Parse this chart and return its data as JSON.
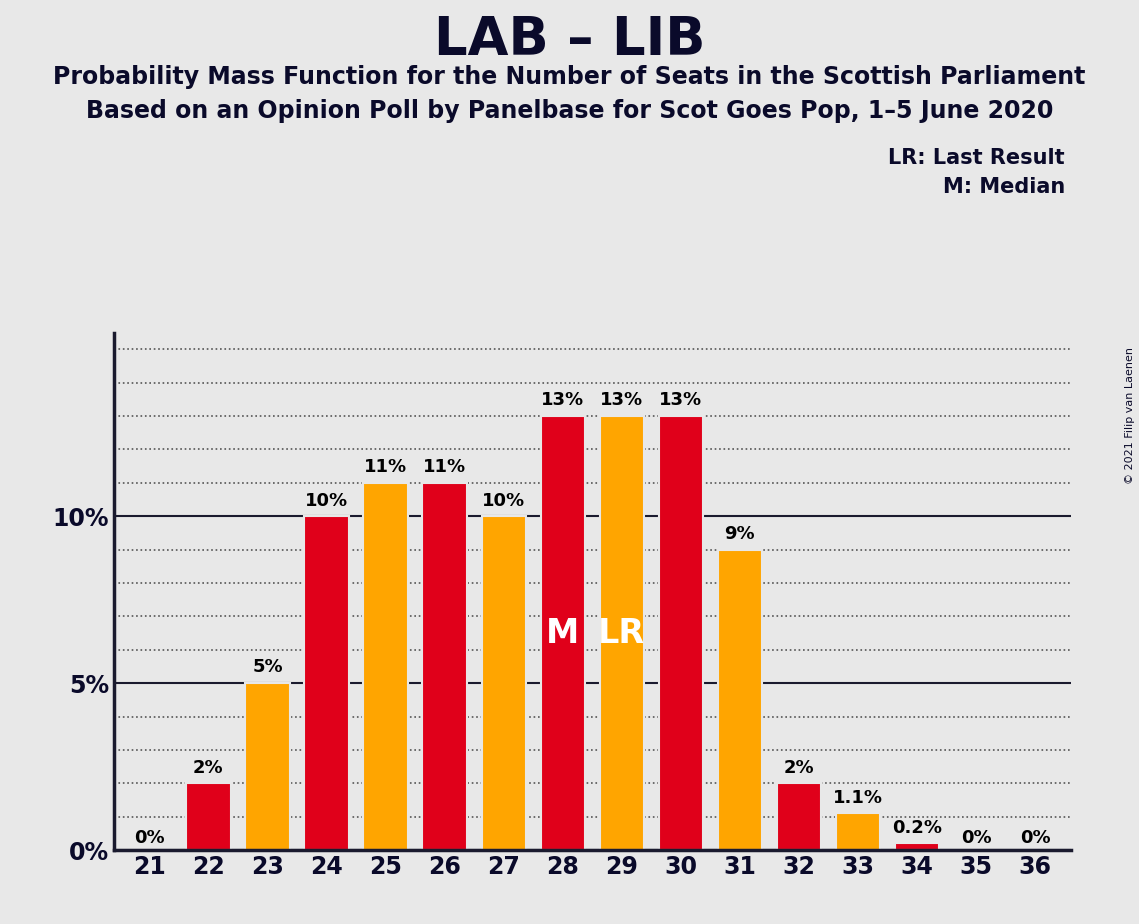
{
  "title": "LAB – LIB",
  "subtitle1": "Probability Mass Function for the Number of Seats in the Scottish Parliament",
  "subtitle2": "Based on an Opinion Poll by Panelbase for Scot Goes Pop, 1–5 June 2020",
  "copyright": "© 2021 Filip van Laenen",
  "seats": [
    21,
    22,
    23,
    24,
    25,
    26,
    27,
    28,
    29,
    30,
    31,
    32,
    33,
    34,
    35,
    36
  ],
  "values": [
    0.0,
    2.0,
    5.0,
    10.0,
    11.0,
    11.0,
    10.0,
    13.0,
    13.0,
    13.0,
    9.0,
    2.0,
    1.1,
    0.2,
    0.0,
    0.0
  ],
  "colors": [
    "#E0001A",
    "#E0001A",
    "#FFA500",
    "#E0001A",
    "#FFA500",
    "#E0001A",
    "#FFA500",
    "#E0001A",
    "#FFA500",
    "#E0001A",
    "#FFA500",
    "#E0001A",
    "#FFA500",
    "#E0001A",
    "#FFA500",
    "#E0001A"
  ],
  "labels": [
    "0%",
    "2%",
    "5%",
    "10%",
    "11%",
    "11%",
    "10%",
    "13%",
    "13%",
    "13%",
    "9%",
    "2%",
    "1.1%",
    "0.2%",
    "0%",
    "0%"
  ],
  "median_seat": 28,
  "lr_seat": 29,
  "background_color": "#E8E8E8",
  "bar_red": "#E0001A",
  "bar_orange": "#FFA500",
  "lr_legend": "LR: Last Result",
  "m_legend": "M: Median",
  "ylim_max": 15.5,
  "major_yticks": [
    0,
    5,
    10
  ],
  "minor_yticks": [
    1,
    2,
    3,
    4,
    6,
    7,
    8,
    9,
    11,
    12,
    13,
    14,
    15
  ],
  "ytick_labels": [
    "0%",
    "5%",
    "10%"
  ]
}
